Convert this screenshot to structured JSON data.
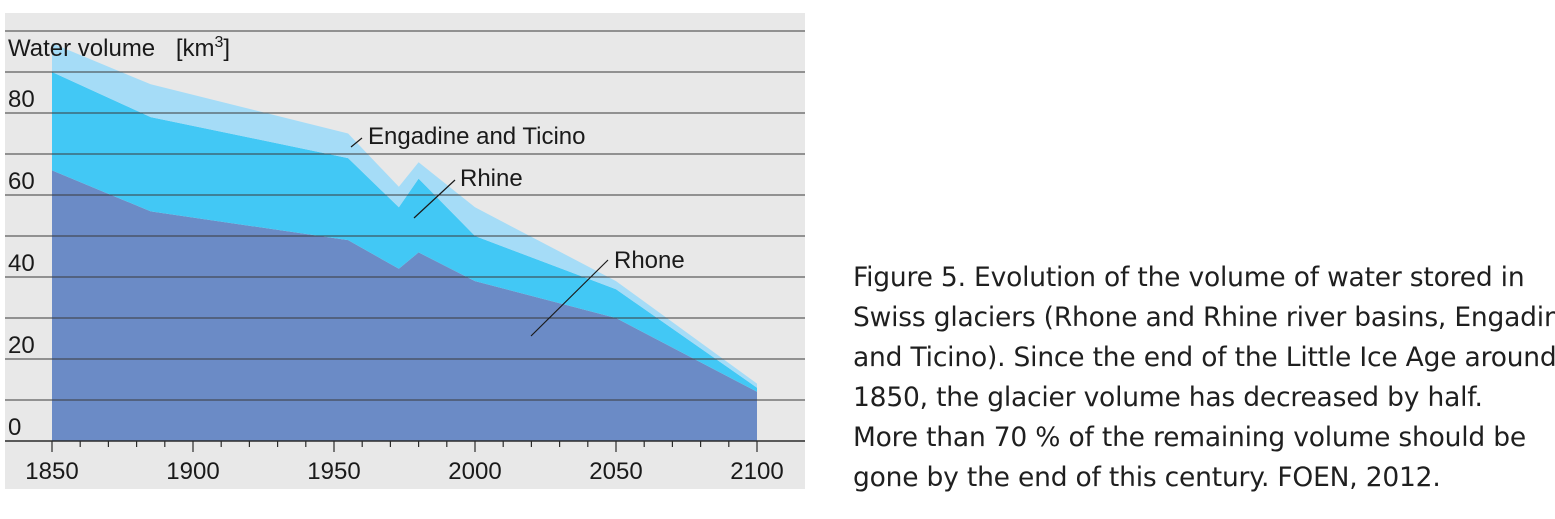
{
  "chart_data": {
    "type": "area",
    "ylabel": "Water volume",
    "yunit_base": "[km",
    "yunit_sup": "3",
    "yunit_close": "]",
    "x_ticks": [
      1850,
      1900,
      1950,
      2000,
      2050,
      2100
    ],
    "y_ticks": [
      0,
      20,
      40,
      60,
      80
    ],
    "xlim": [
      1850,
      2100
    ],
    "ylim": [
      0,
      100
    ],
    "grid": true,
    "stacked": true,
    "series": [
      {
        "name": "Rhone",
        "color": "#6b8bc6",
        "x": [
          1850,
          1885,
          1955,
          1973,
          1980,
          2000,
          2050,
          2100
        ],
        "values": [
          66,
          56,
          49,
          42,
          46,
          39,
          30,
          12
        ]
      },
      {
        "name": "Rhine",
        "color": "#42c8f5",
        "x": [
          1850,
          1885,
          1955,
          1973,
          1980,
          2000,
          2050,
          2100
        ],
        "values": [
          24,
          23,
          20,
          15,
          18,
          11,
          7,
          1
        ]
      },
      {
        "name": "Engadine and Ticino",
        "color": "#a5dcf7",
        "x": [
          1850,
          1885,
          1955,
          1973,
          1980,
          2000,
          2050,
          2100
        ],
        "values": [
          7,
          8,
          6,
          5,
          4,
          7,
          2,
          1
        ]
      }
    ]
  },
  "caption": {
    "figure_label": "Figure 5.",
    "lines": [
      " Evolution of the volume of water stored in",
      "Swiss glaciers (Rhone and Rhine river basins, Engadine",
      "and Ticino). Since the end of the Little Ice Age around",
      "1850, the glacier volume has decreased by half.",
      "More than 70 % of the remaining volume should be",
      "gone by the end of this century. FOEN, 2012."
    ]
  }
}
